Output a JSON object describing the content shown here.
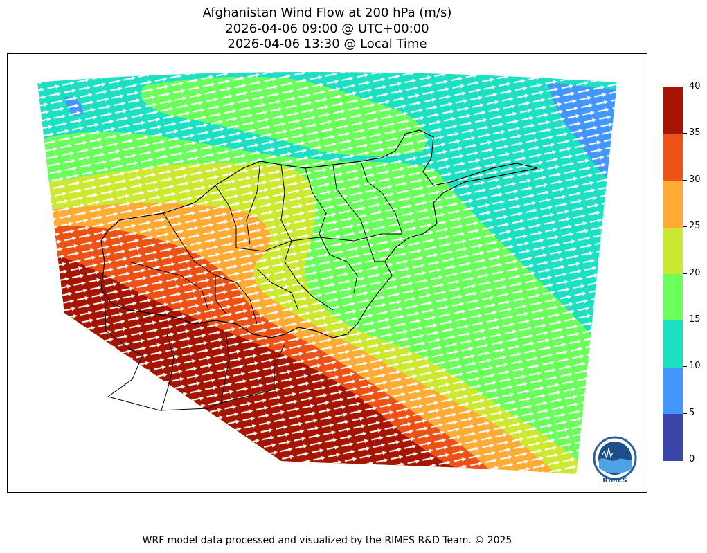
{
  "title": {
    "line1": "Afghanistan Wind Flow at 200 hPa (m/s)",
    "line2": "2026-04-06 09:00 @ UTC+00:00",
    "line3": "2026-04-06 13:30 @ Local Time"
  },
  "colorbar": {
    "ticks": [
      "0",
      "5",
      "10",
      "15",
      "20",
      "25",
      "30",
      "35",
      "40"
    ],
    "levels": [
      {
        "min": 0,
        "max": 5,
        "color": "#3b46a8"
      },
      {
        "min": 5,
        "max": 10,
        "color": "#4496ff"
      },
      {
        "min": 10,
        "max": 15,
        "color": "#1ddfc1"
      },
      {
        "min": 15,
        "max": 20,
        "color": "#6bff5c"
      },
      {
        "min": 20,
        "max": 25,
        "color": "#cde831"
      },
      {
        "min": 25,
        "max": 30,
        "color": "#ffab36"
      },
      {
        "min": 30,
        "max": 35,
        "color": "#ec5216"
      },
      {
        "min": 35,
        "max": 40,
        "color": "#a51602"
      }
    ]
  },
  "logo": {
    "text": "RIMES"
  },
  "footer": "WRF model data processed and visualized by the RIMES R&D Team. © 2025"
}
